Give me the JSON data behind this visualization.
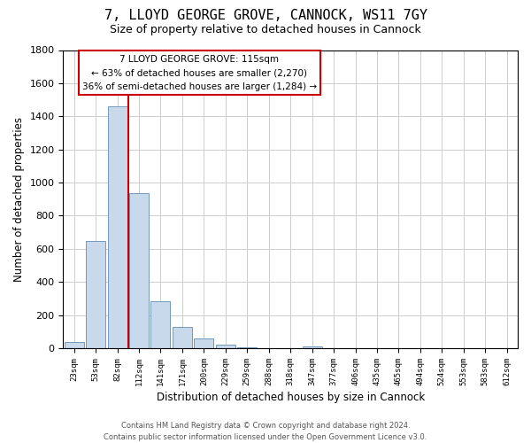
{
  "title": "7, LLOYD GEORGE GROVE, CANNOCK, WS11 7GY",
  "subtitle": "Size of property relative to detached houses in Cannock",
  "xlabel": "Distribution of detached houses by size in Cannock",
  "ylabel": "Number of detached properties",
  "bar_labels": [
    "23sqm",
    "53sqm",
    "82sqm",
    "112sqm",
    "141sqm",
    "171sqm",
    "200sqm",
    "229sqm",
    "259sqm",
    "288sqm",
    "318sqm",
    "347sqm",
    "377sqm",
    "406sqm",
    "435sqm",
    "465sqm",
    "494sqm",
    "524sqm",
    "553sqm",
    "583sqm",
    "612sqm"
  ],
  "bar_values": [
    40,
    650,
    1460,
    935,
    285,
    130,
    60,
    22,
    5,
    0,
    0,
    12,
    0,
    0,
    0,
    0,
    0,
    0,
    0,
    0,
    0
  ],
  "bar_color": "#c9d9ec",
  "bar_edge_color": "#7399bb",
  "ylim": [
    0,
    1800
  ],
  "yticks": [
    0,
    200,
    400,
    600,
    800,
    1000,
    1200,
    1400,
    1600,
    1800
  ],
  "annotation_title": "7 LLOYD GEORGE GROVE: 115sqm",
  "annotation_line1": "← 63% of detached houses are smaller (2,270)",
  "annotation_line2": "36% of semi-detached houses are larger (1,284) →",
  "footer_line1": "Contains HM Land Registry data © Crown copyright and database right 2024.",
  "footer_line2": "Contains public sector information licensed under the Open Government Licence v3.0.",
  "background_color": "#ffffff",
  "grid_color": "#cccccc",
  "property_bar_index": 3,
  "vline_color": "#cc0000",
  "title_fontsize": 11,
  "subtitle_fontsize": 9
}
